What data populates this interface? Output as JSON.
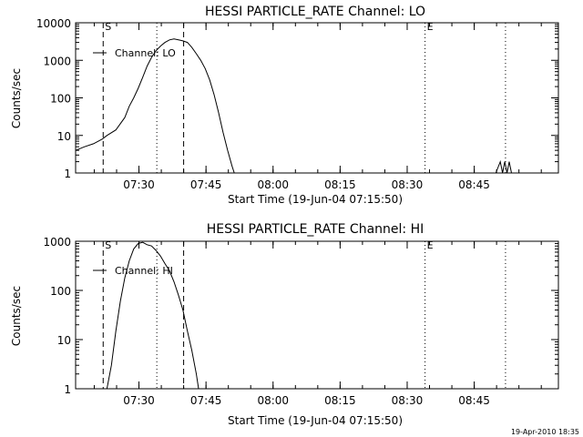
{
  "chart_data": [
    {
      "type": "line",
      "title": "HESSI PARTICLE_RATE Channel: LO",
      "xlabel": "Start Time (19-Jun-04 07:15:50)",
      "ylabel": "Counts/sec",
      "yscale": "log",
      "ylim": [
        1,
        10000
      ],
      "xlim_minutes": [
        0,
        108
      ],
      "x_tick_labels": [
        "07:30",
        "07:45",
        "08:00",
        "08:15",
        "08:30",
        "08:45"
      ],
      "x_tick_minutes": [
        14.17,
        29.17,
        44.17,
        59.17,
        74.17,
        89.17
      ],
      "y_tick_labels": [
        "1",
        "10",
        "100",
        "1000",
        "10000"
      ],
      "y_tick_values": [
        1,
        10,
        100,
        1000,
        10000
      ],
      "legend": "Channel: LO",
      "markers": [
        {
          "label": "S",
          "time": "07:22",
          "style": "dashed"
        },
        {
          "label": "",
          "time": "07:34",
          "style": "dotted"
        },
        {
          "label": "",
          "time": "07:40",
          "style": "dashed"
        },
        {
          "label": "E",
          "time": "08:34",
          "style": "dotted"
        },
        {
          "label": "",
          "time": "08:52",
          "style": "dotted"
        }
      ],
      "series": [
        {
          "name": "Channel: LO",
          "segments": [
            [
              [
                0,
                4
              ],
              [
                2,
                5
              ],
              [
                4,
                6
              ],
              [
                6,
                8
              ],
              [
                7,
                10
              ],
              [
                9,
                14
              ],
              [
                11,
                30
              ],
              [
                12,
                60
              ],
              [
                13,
                100
              ],
              [
                14,
                180
              ],
              [
                15,
                350
              ],
              [
                16,
                700
              ],
              [
                17,
                1200
              ],
              [
                18,
                1800
              ],
              [
                19,
                2400
              ],
              [
                20,
                3000
              ],
              [
                21,
                3500
              ],
              [
                22,
                3700
              ],
              [
                23,
                3500
              ],
              [
                24,
                3300
              ],
              [
                25,
                3000
              ],
              [
                26,
                2200
              ],
              [
                27,
                1500
              ],
              [
                28,
                1000
              ],
              [
                29,
                600
              ],
              [
                30,
                300
              ],
              [
                31,
                120
              ],
              [
                32,
                40
              ],
              [
                33,
                12
              ],
              [
                34,
                4
              ],
              [
                35,
                1.5
              ],
              [
                35.5,
                1
              ]
            ],
            [
              [
                94,
                1
              ],
              [
                95,
                2
              ],
              [
                95.5,
                1
              ],
              [
                96,
                2
              ],
              [
                96.5,
                1
              ],
              [
                97,
                2
              ],
              [
                97.5,
                1
              ]
            ]
          ]
        }
      ]
    },
    {
      "type": "line",
      "title": "HESSI PARTICLE_RATE Channel: HI",
      "xlabel": "Start Time (19-Jun-04 07:15:50)",
      "ylabel": "Counts/sec",
      "yscale": "log",
      "ylim": [
        1,
        1000
      ],
      "xlim_minutes": [
        0,
        108
      ],
      "x_tick_labels": [
        "07:30",
        "07:45",
        "08:00",
        "08:15",
        "08:30",
        "08:45"
      ],
      "x_tick_minutes": [
        14.17,
        29.17,
        44.17,
        59.17,
        74.17,
        89.17
      ],
      "y_tick_labels": [
        "1",
        "10",
        "100",
        "1000"
      ],
      "y_tick_values": [
        1,
        10,
        100,
        1000
      ],
      "legend": "Channel: HI",
      "markers": [
        {
          "label": "S",
          "time": "07:22",
          "style": "dashed"
        },
        {
          "label": "",
          "time": "07:34",
          "style": "dotted"
        },
        {
          "label": "",
          "time": "07:40",
          "style": "dashed"
        },
        {
          "label": "E",
          "time": "08:34",
          "style": "dotted"
        },
        {
          "label": "",
          "time": "08:52",
          "style": "dotted"
        }
      ],
      "series": [
        {
          "name": "Channel: HI",
          "segments": [
            [
              [
                7,
                1
              ],
              [
                8,
                3
              ],
              [
                9,
                15
              ],
              [
                10,
                60
              ],
              [
                11,
                180
              ],
              [
                12,
                400
              ],
              [
                13,
                700
              ],
              [
                14,
                900
              ],
              [
                15,
                950
              ],
              [
                16,
                850
              ],
              [
                17,
                800
              ],
              [
                18,
                650
              ],
              [
                19,
                500
              ],
              [
                20,
                350
              ],
              [
                21,
                250
              ],
              [
                22,
                150
              ],
              [
                23,
                80
              ],
              [
                24,
                40
              ],
              [
                25,
                15
              ],
              [
                26,
                6
              ],
              [
                27,
                2
              ],
              [
                27.5,
                1
              ]
            ]
          ]
        }
      ]
    }
  ],
  "footer": {
    "timestamp": "19-Apr-2010 18:35"
  }
}
